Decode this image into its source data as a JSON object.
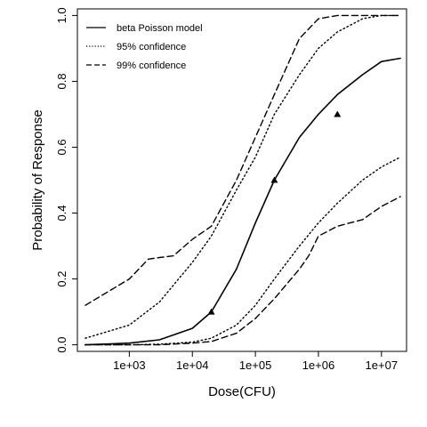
{
  "chart_data": {
    "type": "line",
    "xscale": "log10",
    "xlim": [
      150,
      25000000
    ],
    "ylim": [
      -0.02,
      1.02
    ],
    "xlabel": "Dose(CFU)",
    "ylabel": "Probability of Response",
    "x_ticks": [
      1000,
      10000,
      100000,
      1000000,
      10000000
    ],
    "x_tick_labels": [
      "1e+03",
      "1e+04",
      "1e+05",
      "1e+06",
      "1e+07"
    ],
    "y_ticks": [
      0.0,
      0.2,
      0.4,
      0.6,
      0.8,
      1.0
    ],
    "y_tick_labels": [
      "0.0",
      "0.2",
      "0.4",
      "0.6",
      "0.8",
      "1.0"
    ],
    "grid": false,
    "legend_position": "top-left",
    "series": [
      {
        "name": "beta Poisson model",
        "style": "solid",
        "x": [
          200,
          1000,
          3000,
          10000,
          20000,
          50000,
          100000,
          200000,
          500000,
          1000000,
          2000000,
          5000000,
          10000000,
          20000000
        ],
        "y": [
          0.0,
          0.005,
          0.015,
          0.05,
          0.1,
          0.23,
          0.37,
          0.5,
          0.63,
          0.7,
          0.76,
          0.82,
          0.86,
          0.87
        ]
      },
      {
        "name": "95% confidence",
        "style": "dotted",
        "x": [
          200,
          1000,
          3000,
          10000,
          20000,
          50000,
          100000,
          200000,
          500000,
          1000000,
          2000000,
          5000000,
          10000000,
          20000000
        ],
        "y": [
          0.02,
          0.06,
          0.13,
          0.25,
          0.33,
          0.47,
          0.57,
          0.7,
          0.82,
          0.9,
          0.95,
          0.99,
          1.0,
          1.0
        ]
      },
      {
        "name": "95% confidence",
        "style": "dotted",
        "x": [
          200,
          1000,
          3000,
          10000,
          20000,
          50000,
          100000,
          200000,
          500000,
          1000000,
          2000000,
          5000000,
          10000000,
          20000000
        ],
        "y": [
          0.0,
          0.0,
          0.002,
          0.008,
          0.02,
          0.06,
          0.12,
          0.2,
          0.3,
          0.37,
          0.43,
          0.5,
          0.54,
          0.57
        ]
      },
      {
        "name": "99% confidence",
        "style": "dashed",
        "x": [
          200,
          1000,
          2000,
          3000,
          5000,
          10000,
          20000,
          50000,
          100000,
          200000,
          500000,
          1000000,
          2000000,
          5000000,
          10000000,
          20000000
        ],
        "y": [
          0.12,
          0.2,
          0.26,
          0.265,
          0.27,
          0.32,
          0.36,
          0.5,
          0.63,
          0.76,
          0.93,
          0.99,
          1.0,
          1.0,
          1.0,
          1.0
        ]
      },
      {
        "name": "99% confidence",
        "style": "dashed",
        "x": [
          200,
          1000,
          3000,
          10000,
          20000,
          50000,
          100000,
          200000,
          500000,
          700000,
          1000000,
          2000000,
          5000000,
          10000000,
          20000000
        ],
        "y": [
          0.0,
          0.0,
          0.0,
          0.005,
          0.01,
          0.035,
          0.08,
          0.14,
          0.23,
          0.27,
          0.33,
          0.36,
          0.38,
          0.42,
          0.45
        ]
      }
    ],
    "points": {
      "marker": "triangle",
      "x": [
        20000,
        200000,
        2000000
      ],
      "y": [
        0.1,
        0.5,
        0.7
      ]
    },
    "legend": [
      {
        "label": "beta Poisson model",
        "style": "solid"
      },
      {
        "label": "95% confidence",
        "style": "dotted"
      },
      {
        "label": "99% confidence",
        "style": "dashed"
      }
    ]
  }
}
